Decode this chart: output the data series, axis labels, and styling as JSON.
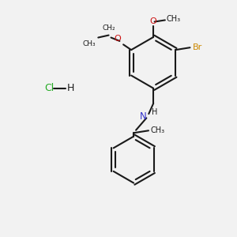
{
  "background_color": "#f2f2f2",
  "bond_color": "#1a1a1a",
  "nitrogen_color": "#3333cc",
  "oxygen_color": "#cc1111",
  "bromine_color": "#cc8800",
  "chlorine_color": "#22aa22",
  "figsize": [
    3.0,
    3.0
  ],
  "dpi": 100,
  "xlim": [
    0,
    10
  ],
  "ylim": [
    0,
    10
  ]
}
